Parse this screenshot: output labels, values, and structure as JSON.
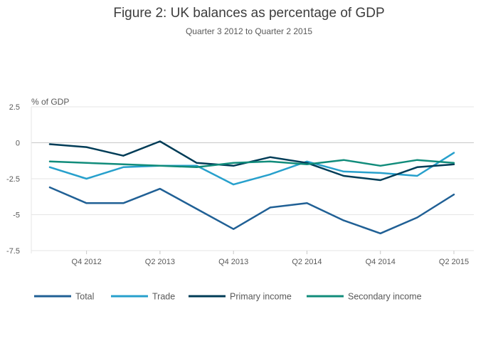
{
  "chart_data": {
    "type": "line",
    "title": "Figure 2: UK balances as percentage of GDP",
    "subtitle": "Quarter 3 2012 to Quarter 2 2015",
    "ylabel": "% of GDP",
    "xlabel": "",
    "ylim": [
      -7.5,
      2.5
    ],
    "yticks": [
      2.5,
      0,
      -2.5,
      -5,
      -7.5
    ],
    "ytick_labels": [
      "2.5",
      "0",
      "-2.5",
      "-5",
      "-7.5"
    ],
    "categories": [
      "Q3 2012",
      "Q4 2012",
      "Q1 2013",
      "Q2 2013",
      "Q3 2013",
      "Q4 2013",
      "Q1 2014",
      "Q2 2014",
      "Q3 2014",
      "Q4 2014",
      "Q1 2015",
      "Q2 2015"
    ],
    "xtick_labels": [
      "Q4 2012",
      "Q2 2013",
      "Q4 2013",
      "Q2 2014",
      "Q4 2014",
      "Q2 2015"
    ],
    "xtick_indices": [
      1,
      3,
      5,
      7,
      9,
      11
    ],
    "grid": true,
    "legend_position": "bottom",
    "series": [
      {
        "name": "Total",
        "color": "#206095",
        "values": [
          -3.1,
          -4.2,
          -4.2,
          -3.2,
          -4.6,
          -6.0,
          -4.5,
          -4.2,
          -5.4,
          -6.3,
          -5.2,
          -3.6
        ]
      },
      {
        "name": "Trade",
        "color": "#27a0cc",
        "values": [
          -1.7,
          -2.5,
          -1.7,
          -1.6,
          -1.6,
          -2.9,
          -2.2,
          -1.3,
          -2.0,
          -2.1,
          -2.3,
          -0.7
        ]
      },
      {
        "name": "Primary income",
        "color": "#003c57",
        "values": [
          -0.1,
          -0.3,
          -0.9,
          0.1,
          -1.4,
          -1.6,
          -1.0,
          -1.4,
          -2.3,
          -2.6,
          -1.7,
          -1.5
        ]
      },
      {
        "name": "Secondary income",
        "color": "#118c7b",
        "values": [
          -1.3,
          -1.4,
          -1.5,
          -1.6,
          -1.7,
          -1.4,
          -1.3,
          -1.5,
          -1.2,
          -1.6,
          -1.2,
          -1.4
        ]
      }
    ]
  }
}
